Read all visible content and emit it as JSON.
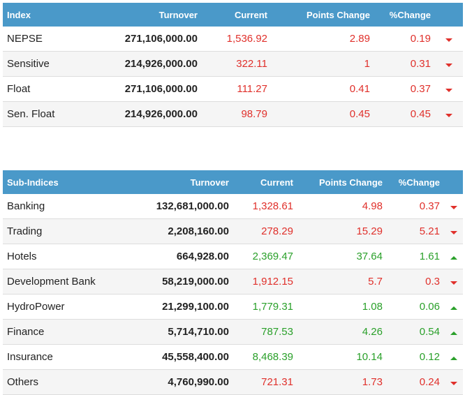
{
  "index_table": {
    "headers": {
      "index": "Index",
      "turnover": "Turnover",
      "current": "Current",
      "points_change": "Points Change",
      "pct_change": "%Change"
    },
    "rows": [
      {
        "name": "NEPSE",
        "turnover": "271,106,000.00",
        "current": "1,536.92",
        "points_change": "2.89",
        "pct_change": "0.19",
        "trend": "down"
      },
      {
        "name": "Sensitive",
        "turnover": "214,926,000.00",
        "current": "322.11",
        "points_change": "1",
        "pct_change": "0.31",
        "trend": "down"
      },
      {
        "name": "Float",
        "turnover": "271,106,000.00",
        "current": "111.27",
        "points_change": "0.41",
        "pct_change": "0.37",
        "trend": "down"
      },
      {
        "name": "Sen. Float",
        "turnover": "214,926,000.00",
        "current": "98.79",
        "points_change": "0.45",
        "pct_change": "0.45",
        "trend": "down"
      }
    ]
  },
  "sub_indices_table": {
    "headers": {
      "index": "Sub-Indices",
      "turnover": "Turnover",
      "current": "Current",
      "points_change": "Points Change",
      "pct_change": "%Change"
    },
    "rows": [
      {
        "name": "Banking",
        "turnover": "132,681,000.00",
        "current": "1,328.61",
        "points_change": "4.98",
        "pct_change": "0.37",
        "trend": "down"
      },
      {
        "name": "Trading",
        "turnover": "2,208,160.00",
        "current": "278.29",
        "points_change": "15.29",
        "pct_change": "5.21",
        "trend": "down"
      },
      {
        "name": "Hotels",
        "turnover": "664,928.00",
        "current": "2,369.47",
        "points_change": "37.64",
        "pct_change": "1.61",
        "trend": "up"
      },
      {
        "name": "Development Bank",
        "turnover": "58,219,000.00",
        "current": "1,912.15",
        "points_change": "5.7",
        "pct_change": "0.3",
        "trend": "down"
      },
      {
        "name": "HydroPower",
        "turnover": "21,299,100.00",
        "current": "1,779.31",
        "points_change": "1.08",
        "pct_change": "0.06",
        "trend": "up"
      },
      {
        "name": "Finance",
        "turnover": "5,714,710.00",
        "current": "787.53",
        "points_change": "4.26",
        "pct_change": "0.54",
        "trend": "up"
      },
      {
        "name": "Insurance",
        "turnover": "45,558,400.00",
        "current": "8,468.39",
        "points_change": "10.14",
        "pct_change": "0.12",
        "trend": "up"
      },
      {
        "name": "Others",
        "turnover": "4,760,990.00",
        "current": "721.31",
        "points_change": "1.73",
        "pct_change": "0.24",
        "trend": "down"
      }
    ]
  },
  "colors": {
    "header_bg": "#4a99c9",
    "down": "#e0302b",
    "up": "#2aa02a"
  },
  "icons": {
    "down": "triangle-down-icon",
    "up": "triangle-up-icon"
  }
}
